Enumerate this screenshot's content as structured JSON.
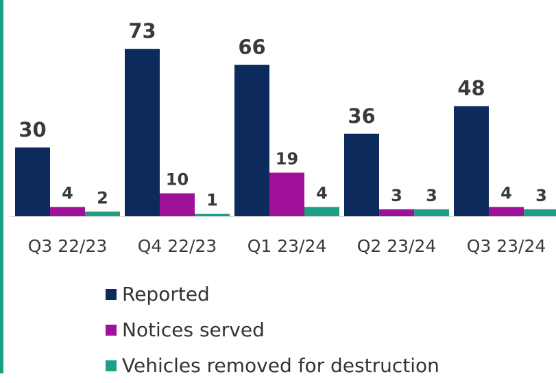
{
  "colors": {
    "reported": "#0d2a5c",
    "notices": "#a0119a",
    "vehicles": "#1d9f86",
    "left_rule": "#1d9f86",
    "axis": "#d9d9d9",
    "text": "#3a3a3a"
  },
  "chart_data": {
    "type": "bar",
    "categories": [
      "Q3 22/23",
      "Q4 22/23",
      "Q1 23/24",
      "Q2 23/24",
      "Q3 23/24"
    ],
    "series": [
      {
        "name": "Reported",
        "values": [
          30,
          73,
          66,
          36,
          48
        ]
      },
      {
        "name": "Notices served",
        "values": [
          4,
          10,
          19,
          3,
          4
        ]
      },
      {
        "name": "Vehicles removed for destruction",
        "values": [
          2,
          1,
          4,
          3,
          3
        ]
      }
    ],
    "data_labels": true,
    "grid": false,
    "legend_position": "bottom"
  },
  "legend": [
    {
      "label": "Reported"
    },
    {
      "label": "Notices served"
    },
    {
      "label": "Vehicles removed for destruction"
    }
  ]
}
